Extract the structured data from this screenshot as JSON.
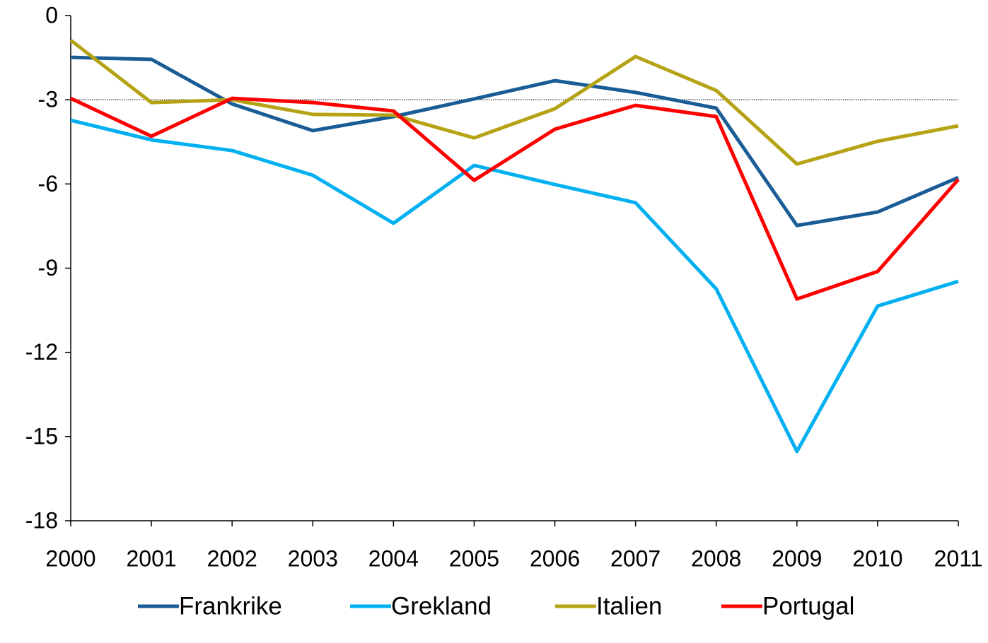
{
  "chart_data": {
    "type": "line",
    "categories": [
      "2000",
      "2001",
      "2002",
      "2003",
      "2004",
      "2005",
      "2006",
      "2007",
      "2008",
      "2009",
      "2010",
      "2011"
    ],
    "series": [
      {
        "name": "Frankrike",
        "color": "#1a5c96",
        "values": [
          -1.49,
          -1.56,
          -3.15,
          -4.1,
          -3.6,
          -2.97,
          -2.32,
          -2.74,
          -3.3,
          -7.48,
          -7.0,
          -5.77
        ]
      },
      {
        "name": "Grekland",
        "color": "#00b0f0",
        "values": [
          -3.73,
          -4.43,
          -4.81,
          -5.69,
          -7.4,
          -5.34,
          -6.02,
          -6.67,
          -9.74,
          -15.53,
          -10.35,
          -9.47
        ]
      },
      {
        "name": "Italien",
        "color": "#b5a315",
        "values": [
          -0.88,
          -3.1,
          -3.0,
          -3.52,
          -3.55,
          -4.36,
          -3.32,
          -1.46,
          -2.67,
          -5.29,
          -4.48,
          -3.93
        ]
      },
      {
        "name": "Portugal",
        "color": "#ff0000",
        "values": [
          -2.95,
          -4.3,
          -2.95,
          -3.1,
          -3.4,
          -5.87,
          -4.05,
          -3.2,
          -3.6,
          -10.1,
          -9.12,
          -5.84
        ]
      }
    ],
    "ylim": [
      -18,
      0
    ],
    "yticks": [
      -18,
      -15,
      -12,
      -9,
      -6,
      -3,
      0
    ],
    "reference_line": -3,
    "legend": "bottom"
  }
}
